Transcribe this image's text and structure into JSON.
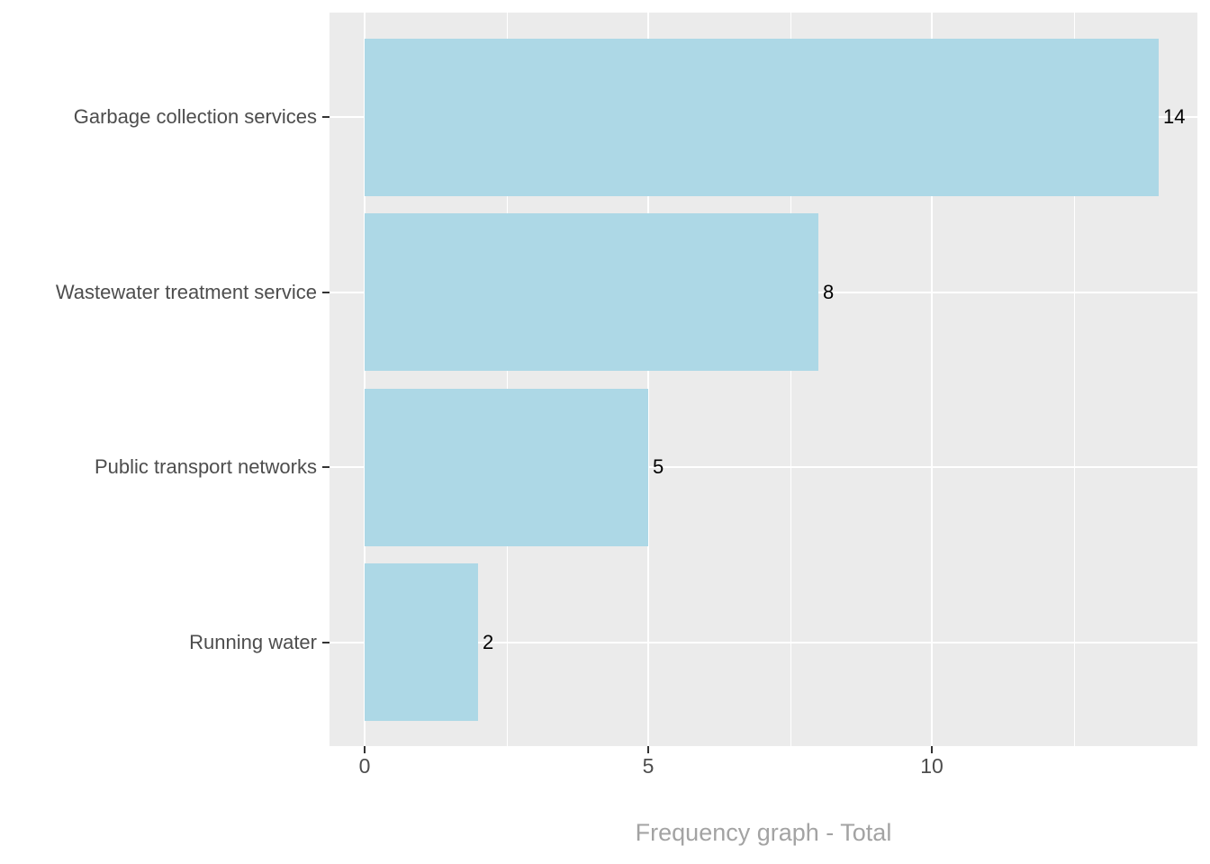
{
  "chart_data": {
    "type": "bar",
    "orientation": "horizontal",
    "title": "",
    "xlabel": "Frequency graph - Total",
    "ylabel": "",
    "categories": [
      "Garbage collection services",
      "Wastewater treatment service",
      "Public transport networks",
      "Running water"
    ],
    "values": [
      14,
      8,
      5,
      2
    ],
    "bar_labels": [
      "14",
      "8",
      "5",
      "2"
    ],
    "x_tick_values": [
      0,
      5,
      10
    ],
    "x_tick_labels": [
      "0",
      "5",
      "10"
    ],
    "x_minor_gridline_values": [
      2.5,
      7.5,
      12.5
    ],
    "xlim": [
      -0.62,
      14.68
    ],
    "grid": "white major and minor gridlines on gray panel",
    "legend": false,
    "colors": {
      "bar_fill": "#ADD8E6",
      "panel_background": "#EBEBEB",
      "gridline": "#FFFFFF",
      "axis_text": "#4D4D4D",
      "tick_mark": "#333333",
      "axis_title": "#A3A3A3",
      "bar_label_text": "#000000",
      "figure_background": "#FFFFFF"
    }
  }
}
